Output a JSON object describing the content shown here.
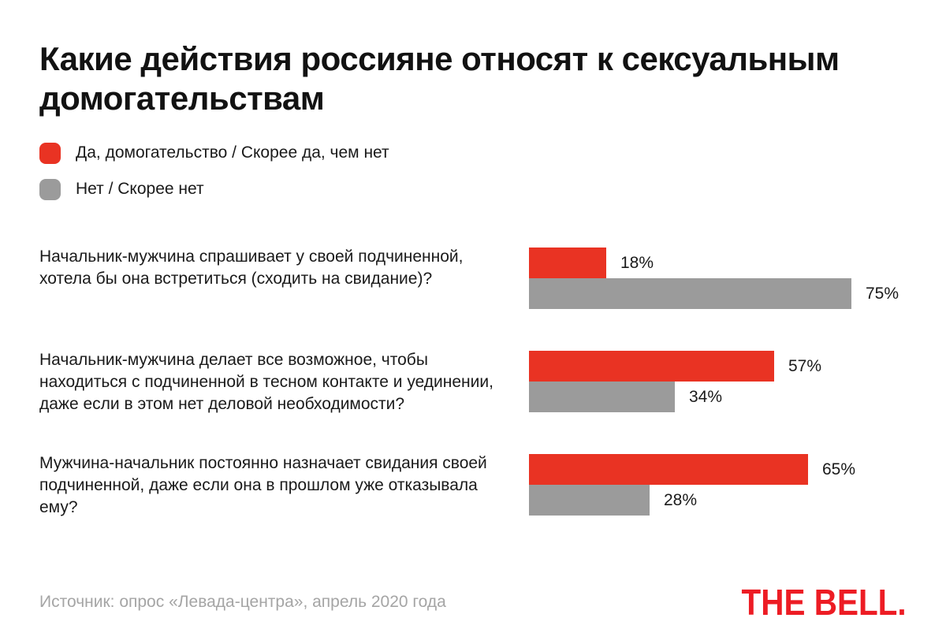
{
  "title": "Какие действия россияне относят к сексуальным домогательствам",
  "legend": {
    "items": [
      {
        "label": "Да, домогательство / Скорее да, чем нет",
        "color": "#E93323"
      },
      {
        "label": "Нет / Скорее нет",
        "color": "#9B9B9B"
      }
    ]
  },
  "chart_data": {
    "type": "bar",
    "orientation": "horizontal",
    "unit": "percent",
    "xlim": [
      0,
      100
    ],
    "grid": false,
    "legend_position": "top-left",
    "title": "Какие действия россияне относят к сексуальным домогательствам",
    "categories": [
      "Начальник-мужчина спрашивает у своей подчиненной, хотела бы она встретиться (сходить на свидание)?",
      "Начальник-мужчина делает все возможное, чтобы находиться с подчиненной в тесном контакте и уединении, даже если в этом нет деловой необходимости?",
      "Мужчина-начальник постоянно назначает свидания своей подчиненной, даже если она в прошлом уже отказывала ему?"
    ],
    "series": [
      {
        "name": "Да, домогательство / Скорее да, чем нет",
        "color": "#E93323",
        "values": [
          18,
          57,
          65
        ],
        "labels": [
          "18%",
          "57%",
          "65%"
        ]
      },
      {
        "name": "Нет / Скорее нет",
        "color": "#9B9B9B",
        "values": [
          75,
          34,
          28
        ],
        "labels": [
          "75%",
          "34%",
          "28%"
        ]
      }
    ]
  },
  "footer": {
    "source": "Источник: опрос «Левада-центра», апрель 2020 года",
    "logo": "THE BELL."
  },
  "colors": {
    "background": "#FFFFFF",
    "title_text": "#121212",
    "body_text": "#1A1A1A",
    "muted_text": "#A5A5A5",
    "bar_red": "#E93323",
    "bar_gray": "#9B9B9B",
    "logo_red": "#ED1C24"
  }
}
